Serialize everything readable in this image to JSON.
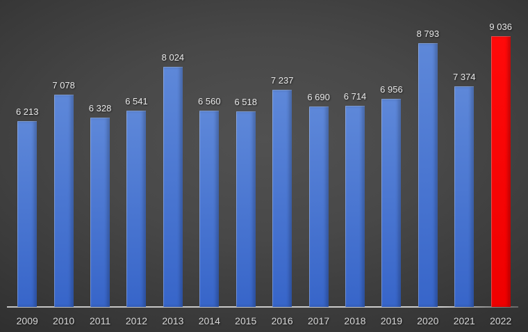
{
  "chart_data": {
    "type": "bar",
    "title": "",
    "xlabel": "",
    "ylabel": "",
    "categories": [
      "2009",
      "2010",
      "2011",
      "2012",
      "2013",
      "2014",
      "2015",
      "2016",
      "2017",
      "2018",
      "2019",
      "2020",
      "2021",
      "2022"
    ],
    "values": [
      6213,
      7078,
      6328,
      6541,
      8024,
      6560,
      6518,
      7237,
      6690,
      6714,
      6956,
      8793,
      7374,
      9036
    ],
    "value_labels": [
      "6 213",
      "7 078",
      "6 328",
      "6 541",
      "8 024",
      "6 560",
      "6 518",
      "7 237",
      "6 690",
      "6 714",
      "6 956",
      "8 793",
      "7 374",
      "9 036"
    ],
    "highlight_index": 13,
    "ylim": [
      0,
      9036
    ],
    "grid": false,
    "legend": null,
    "colors": {
      "bar_blue_top": "#5e88d9",
      "bar_blue_bottom": "#3765c9",
      "bar_red_top": "#ff0a0a",
      "bar_red_bottom": "#ef0000",
      "axis_line": "#c9c9c9",
      "value_label_text": "#e9e9e9",
      "tick_label_text": "#d8d8d8",
      "background_center": "#4f4f4f",
      "background_edge": "#282828"
    }
  }
}
